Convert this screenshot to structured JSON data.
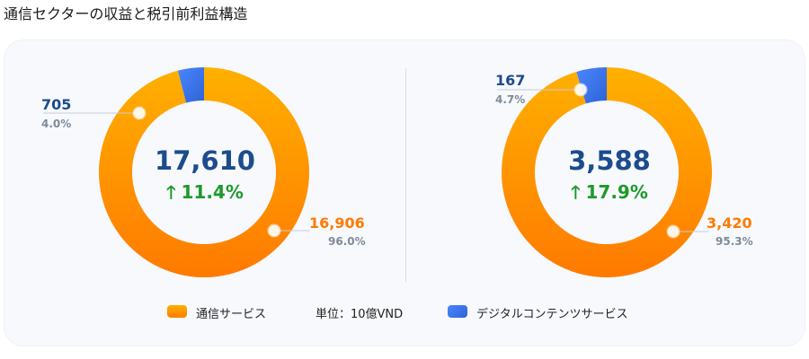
{
  "page_title": "通信セクターの収益と税引前利益構造",
  "unit_label": "単位：10億VND",
  "colors": {
    "telecom": "#ff8c00",
    "telecom_light": "#ffad00",
    "digital": "#3b78f5",
    "total_text": "#1c4c8c",
    "growth_text": "#1c9a2a"
  },
  "icons": {
    "growth": "arrow-up-icon"
  },
  "chart_data": [
    {
      "type": "pie",
      "variant": "donut",
      "total": "17,610",
      "growth": "11.4%",
      "series": [
        {
          "name": "通信サービス",
          "value": 16906,
          "value_label": "16,906",
          "percent": 96.0,
          "percent_label": "96.0%"
        },
        {
          "name": "デジタルコンテンツサービス",
          "value": 705,
          "value_label": "705",
          "percent": 4.0,
          "percent_label": "4.0%"
        }
      ]
    },
    {
      "type": "pie",
      "variant": "donut",
      "total": "3,588",
      "growth": "17.9%",
      "series": [
        {
          "name": "通信サービス",
          "value": 3420,
          "value_label": "3,420",
          "percent": 95.3,
          "percent_label": "95.3%"
        },
        {
          "name": "デジタルコンテンツサービス",
          "value": 167,
          "value_label": "167",
          "percent": 4.7,
          "percent_label": "4.7%"
        }
      ]
    }
  ],
  "legend": [
    {
      "label": "通信サービス"
    },
    {
      "label": "デジタルコンテンツサービス"
    }
  ]
}
